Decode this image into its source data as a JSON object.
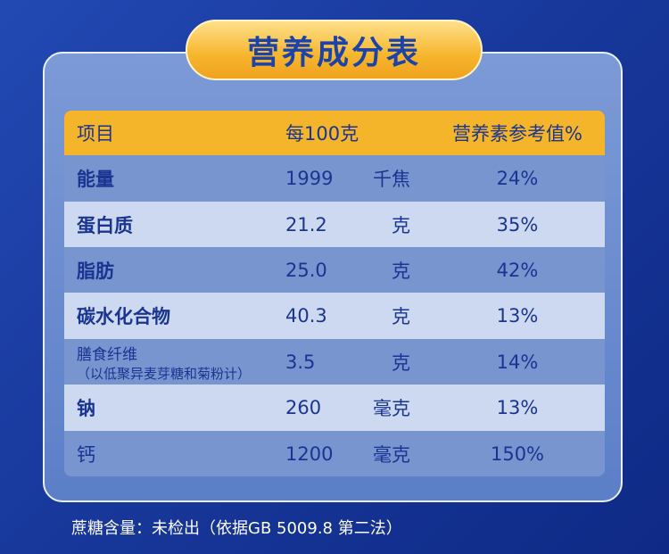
{
  "title": "营养成分表",
  "table": {
    "header": [
      "项目",
      "每100克",
      "营养素参考值%"
    ],
    "rows": [
      {
        "name": [
          "能量"
        ],
        "amount": "1999",
        "unit": "千焦",
        "nrv": "24%"
      },
      {
        "name": [
          "蛋白质"
        ],
        "amount": "21.2",
        "unit": "克",
        "nrv": "35%"
      },
      {
        "name": [
          "脂肪"
        ],
        "amount": "25.0",
        "unit": "克",
        "nrv": "42%"
      },
      {
        "name": [
          "碳水化合物"
        ],
        "amount": "40.3",
        "unit": "克",
        "nrv": "13%"
      },
      {
        "name": [
          "膳食纤维",
          "（以低聚异麦芽糖和菊粉计）"
        ],
        "amount": "3.5",
        "unit": "克",
        "nrv": "14%"
      },
      {
        "name": [
          "钠"
        ],
        "amount": "260",
        "unit": "毫克",
        "nrv": "13%"
      },
      {
        "name": [
          "钙"
        ],
        "amount": "1200",
        "unit": "毫克",
        "nrv": "150%"
      }
    ]
  },
  "footnote": "蔗糖含量：未检出（依据GB 5009.8 第二法）"
}
